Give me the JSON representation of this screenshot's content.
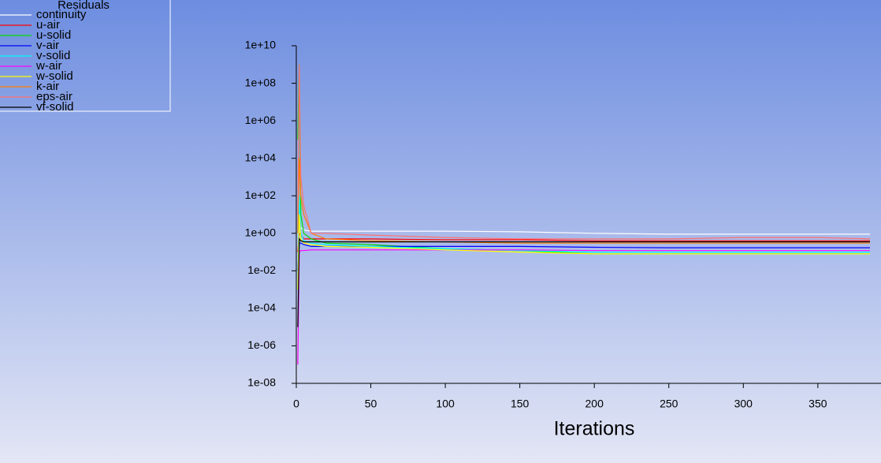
{
  "chart_data": {
    "type": "line",
    "legend_title": "Residuals",
    "xlabel": "Iterations",
    "ylog": true,
    "legend": "upper left",
    "x": [
      1,
      2,
      3,
      5,
      10,
      20,
      50,
      100,
      150,
      200,
      250,
      300,
      350,
      385
    ],
    "xlim": [
      0,
      390
    ],
    "xticks": [
      0,
      50,
      100,
      150,
      200,
      250,
      300,
      350
    ],
    "ylim": [
      1e-08,
      10000000000.0
    ],
    "yticks": [
      {
        "value": 1e-08,
        "label": "1e-08"
      },
      {
        "value": 1e-06,
        "label": "1e-06"
      },
      {
        "value": 0.0001,
        "label": "1e-04"
      },
      {
        "value": 0.01,
        "label": "1e-02"
      },
      {
        "value": 1,
        "label": "1e+00"
      },
      {
        "value": 100,
        "label": "1e+02"
      },
      {
        "value": 10000.0,
        "label": "1e+04"
      },
      {
        "value": 1000000.0,
        "label": "1e+06"
      },
      {
        "value": 100000000.0,
        "label": "1e+08"
      },
      {
        "value": 10000000000.0,
        "label": "1e+10"
      }
    ],
    "series": [
      {
        "name": "continuity",
        "color": "#ffffff",
        "values": [
          1,
          3,
          2,
          1.5,
          1.3,
          1.3,
          1.3,
          1.3,
          1.2,
          1,
          0.9,
          0.9,
          0.9,
          0.9
        ]
      },
      {
        "name": "u-air",
        "color": "#ff0000",
        "values": [
          0.1,
          1,
          0.8,
          0.5,
          0.5,
          0.5,
          0.5,
          0.45,
          0.45,
          0.4,
          0.4,
          0.4,
          0.4,
          0.4
        ]
      },
      {
        "name": "u-solid",
        "color": "#00dd00",
        "values": [
          100000,
          1000000000,
          10,
          1,
          0.5,
          0.3,
          0.25,
          0.15,
          0.12,
          0.08,
          0.08,
          0.08,
          0.08,
          0.08
        ]
      },
      {
        "name": "v-air",
        "color": "#0000ff",
        "values": [
          0.01,
          0.3,
          0.3,
          0.25,
          0.2,
          0.2,
          0.2,
          0.2,
          0.2,
          0.18,
          0.17,
          0.17,
          0.17,
          0.17
        ]
      },
      {
        "name": "v-solid",
        "color": "#00ffff",
        "values": [
          0.001,
          100,
          1,
          0.4,
          0.3,
          0.25,
          0.2,
          0.15,
          0.12,
          0.1,
          0.1,
          0.1,
          0.1,
          0.1
        ]
      },
      {
        "name": "w-air",
        "color": "#ff00ff",
        "values": [
          1e-07,
          0.1,
          0.12,
          0.12,
          0.13,
          0.13,
          0.13,
          0.13,
          0.13,
          0.12,
          0.12,
          0.12,
          0.12,
          0.12
        ]
      },
      {
        "name": "w-solid",
        "color": "#ffff00",
        "values": [
          0.001,
          10,
          0.5,
          0.3,
          0.25,
          0.2,
          0.18,
          0.13,
          0.1,
          0.08,
          0.08,
          0.08,
          0.08,
          0.08
        ]
      },
      {
        "name": "k-air",
        "color": "#ff8000",
        "values": [
          1,
          10000,
          100,
          10,
          1,
          0.5,
          0.4,
          0.35,
          0.3,
          0.3,
          0.3,
          0.3,
          0.3,
          0.3
        ]
      },
      {
        "name": "eps-air",
        "color": "#ff7070",
        "values": [
          10,
          1000000000,
          1000,
          30,
          1,
          1,
          0.8,
          0.6,
          0.5,
          0.5,
          0.5,
          0.6,
          0.6,
          0.5
        ]
      },
      {
        "name": "vf-solid",
        "color": "#000000",
        "values": [
          1e-05,
          0.5,
          0.4,
          0.35,
          0.35,
          0.35,
          0.35,
          0.35,
          0.35,
          0.35,
          0.35,
          0.35,
          0.35,
          0.35
        ]
      }
    ]
  }
}
